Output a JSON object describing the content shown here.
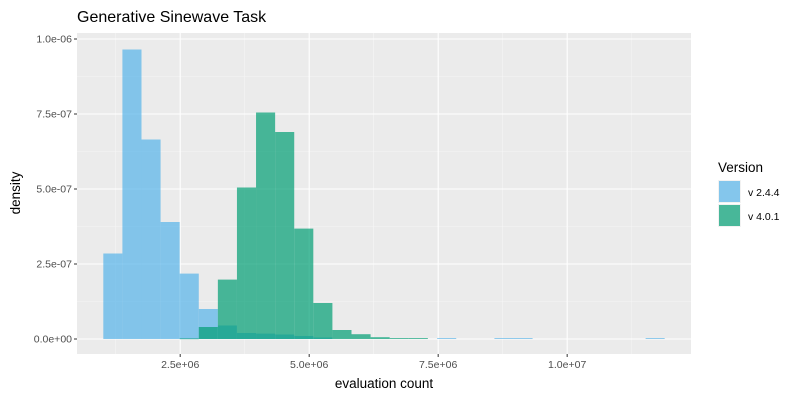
{
  "chart_data": {
    "type": "histogram",
    "title": "Generative Sinewave Task",
    "xlabel": "evaluation count",
    "ylabel": "density",
    "xlim": [
      500000,
      12400000
    ],
    "ylim": [
      -5e-08,
      1.02e-06
    ],
    "x_ticks": [
      {
        "value": 2500000,
        "label": "2.5e+06"
      },
      {
        "value": 5000000,
        "label": "5.0e+06"
      },
      {
        "value": 7500000,
        "label": "7.5e+06"
      },
      {
        "value": 10000000,
        "label": "1.0e+07"
      }
    ],
    "y_ticks": [
      {
        "value": 0,
        "label": "0.0e+00"
      },
      {
        "value": 2.5e-07,
        "label": "2.5e-07"
      },
      {
        "value": 5e-07,
        "label": "5.0e-07"
      },
      {
        "value": 7.5e-07,
        "label": "7.5e-07"
      },
      {
        "value": 1e-06,
        "label": "1.0e-06"
      }
    ],
    "legend": {
      "title": "Version",
      "position": "right"
    },
    "grid": true,
    "bin_width": 370000,
    "series": [
      {
        "name": "v 2.4.4",
        "color": "#56B4E9",
        "bins": [
          {
            "x0": 1010000,
            "x1": 1380000,
            "y": 2.85e-07
          },
          {
            "x0": 1380000,
            "x1": 1750000,
            "y": 9.65e-07
          },
          {
            "x0": 1750000,
            "x1": 2120000,
            "y": 6.65e-07
          },
          {
            "x0": 2120000,
            "x1": 2490000,
            "y": 3.9e-07
          },
          {
            "x0": 2490000,
            "x1": 2860000,
            "y": 2.18e-07
          },
          {
            "x0": 2860000,
            "x1": 3230000,
            "y": 1e-07
          },
          {
            "x0": 3230000,
            "x1": 3600000,
            "y": 4.5e-08
          },
          {
            "x0": 3600000,
            "x1": 3970000,
            "y": 2e-08
          },
          {
            "x0": 3970000,
            "x1": 4340000,
            "y": 1.8e-08
          },
          {
            "x0": 4340000,
            "x1": 4710000,
            "y": 1.5e-08
          },
          {
            "x0": 4710000,
            "x1": 5080000,
            "y": 1e-08
          },
          {
            "x0": 5080000,
            "x1": 5450000,
            "y": 5e-09
          },
          {
            "x0": 7480000,
            "x1": 7850000,
            "y": 3e-09
          },
          {
            "x0": 8590000,
            "x1": 8960000,
            "y": 3e-09
          },
          {
            "x0": 8960000,
            "x1": 9330000,
            "y": 3e-09
          },
          {
            "x0": 11520000,
            "x1": 11890000,
            "y": 3e-09
          }
        ]
      },
      {
        "name": "v 4.0.1",
        "color": "#009E73",
        "bins": [
          {
            "x0": 2490000,
            "x1": 2860000,
            "y": 2e-09
          },
          {
            "x0": 2860000,
            "x1": 3230000,
            "y": 4e-08
          },
          {
            "x0": 3230000,
            "x1": 3600000,
            "y": 1.98e-07
          },
          {
            "x0": 3600000,
            "x1": 3970000,
            "y": 5.05e-07
          },
          {
            "x0": 3970000,
            "x1": 4340000,
            "y": 7.55e-07
          },
          {
            "x0": 4340000,
            "x1": 4710000,
            "y": 6.9e-07
          },
          {
            "x0": 4710000,
            "x1": 5080000,
            "y": 3.68e-07
          },
          {
            "x0": 5080000,
            "x1": 5450000,
            "y": 1.2e-07
          },
          {
            "x0": 5450000,
            "x1": 5820000,
            "y": 3e-08
          },
          {
            "x0": 5820000,
            "x1": 6190000,
            "y": 1.6e-08
          },
          {
            "x0": 6190000,
            "x1": 6560000,
            "y": 6e-09
          },
          {
            "x0": 6560000,
            "x1": 6930000,
            "y": 3e-09
          },
          {
            "x0": 6930000,
            "x1": 7300000,
            "y": 3e-09
          }
        ]
      }
    ]
  },
  "colors": {
    "panel_background": "#EBEBEB",
    "grid_major": "#FFFFFF",
    "grid_minor": "#F5F5F5",
    "tick_text": "#4D4D4D",
    "bar_opacity": 0.7
  }
}
